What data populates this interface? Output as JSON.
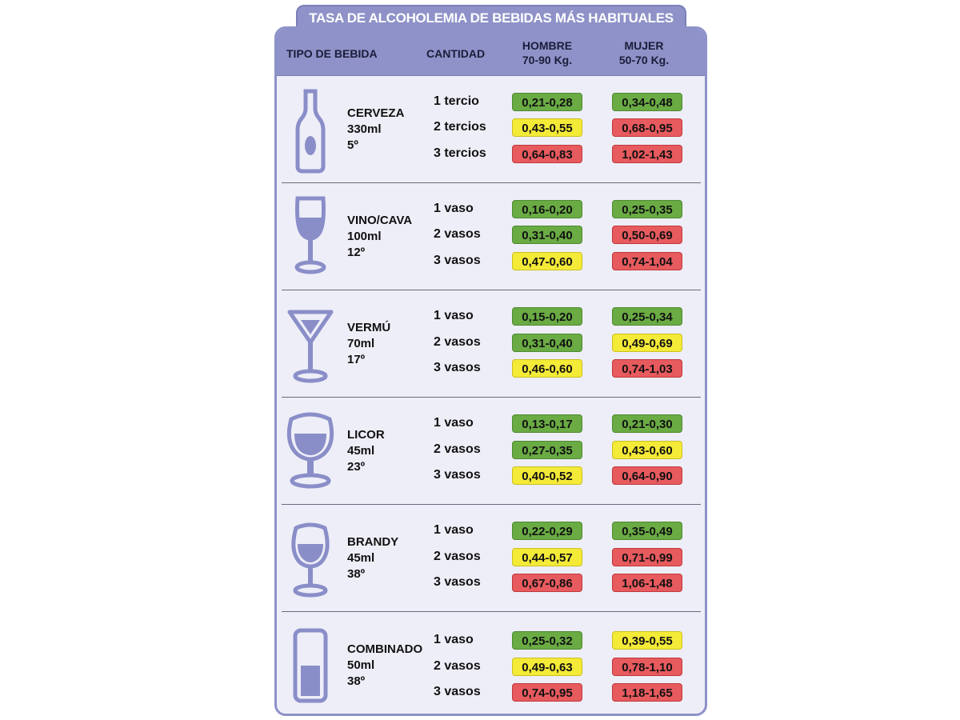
{
  "title": "TASA DE ALCOHOLEMIA DE BEBIDAS MÁS HABITUALES",
  "header": {
    "col_tipo": "TIPO DE BEBIDA",
    "col_cantidad": "CANTIDAD",
    "col_hombre": "HOMBRE",
    "col_hombre_sub": "70-90 Kg.",
    "col_mujer": "MUJER",
    "col_mujer_sub": "50-70 Kg."
  },
  "colors": {
    "green": "#6aab44",
    "yellow": "#f4ea38",
    "red": "#e75a5e",
    "accent": "#8e92c8"
  },
  "drinks": [
    {
      "name": "CERVEZA",
      "volume": "330ml",
      "degree": "5º",
      "icon": "beer-bottle-icon",
      "rows": [
        {
          "qty": "1 tercio",
          "hombre": "0,21-0,28",
          "hombre_color": "green",
          "mujer": "0,34-0,48",
          "mujer_color": "green"
        },
        {
          "qty": "2 tercios",
          "hombre": "0,43-0,55",
          "hombre_color": "yellow",
          "mujer": "0,68-0,95",
          "mujer_color": "red"
        },
        {
          "qty": "3 tercios",
          "hombre": "0,64-0,83",
          "hombre_color": "red",
          "mujer": "1,02-1,43",
          "mujer_color": "red"
        }
      ]
    },
    {
      "name": "VINO/CAVA",
      "volume": "100ml",
      "degree": "12º",
      "icon": "wine-glass-icon",
      "rows": [
        {
          "qty": "1 vaso",
          "hombre": "0,16-0,20",
          "hombre_color": "green",
          "mujer": "0,25-0,35",
          "mujer_color": "green"
        },
        {
          "qty": "2 vasos",
          "hombre": "0,31-0,40",
          "hombre_color": "green",
          "mujer": "0,50-0,69",
          "mujer_color": "red"
        },
        {
          "qty": "3 vasos",
          "hombre": "0,47-0,60",
          "hombre_color": "yellow",
          "mujer": "0,74-1,04",
          "mujer_color": "red"
        }
      ]
    },
    {
      "name": "VERMÚ",
      "volume": "70ml",
      "degree": "17º",
      "icon": "martini-glass-icon",
      "rows": [
        {
          "qty": "1 vaso",
          "hombre": "0,15-0,20",
          "hombre_color": "green",
          "mujer": "0,25-0,34",
          "mujer_color": "green"
        },
        {
          "qty": "2 vasos",
          "hombre": "0,31-0,40",
          "hombre_color": "green",
          "mujer": "0,49-0,69",
          "mujer_color": "yellow"
        },
        {
          "qty": "3 vasos",
          "hombre": "0,46-0,60",
          "hombre_color": "yellow",
          "mujer": "0,74-1,03",
          "mujer_color": "red"
        }
      ]
    },
    {
      "name": "LICOR",
      "volume": "45ml",
      "degree": "23º",
      "icon": "liqueur-glass-icon",
      "rows": [
        {
          "qty": "1 vaso",
          "hombre": "0,13-0,17",
          "hombre_color": "green",
          "mujer": "0,21-0,30",
          "mujer_color": "green"
        },
        {
          "qty": "2 vasos",
          "hombre": "0,27-0,35",
          "hombre_color": "green",
          "mujer": "0,43-0,60",
          "mujer_color": "yellow"
        },
        {
          "qty": "3 vasos",
          "hombre": "0,40-0,52",
          "hombre_color": "yellow",
          "mujer": "0,64-0,90",
          "mujer_color": "red"
        }
      ]
    },
    {
      "name": "BRANDY",
      "volume": "45ml",
      "degree": "38º",
      "icon": "brandy-glass-icon",
      "rows": [
        {
          "qty": "1 vaso",
          "hombre": "0,22-0,29",
          "hombre_color": "green",
          "mujer": "0,35-0,49",
          "mujer_color": "green"
        },
        {
          "qty": "2 vasos",
          "hombre": "0,44-0,57",
          "hombre_color": "yellow",
          "mujer": "0,71-0,99",
          "mujer_color": "red"
        },
        {
          "qty": "3 vasos",
          "hombre": "0,67-0,86",
          "hombre_color": "red",
          "mujer": "1,06-1,48",
          "mujer_color": "red"
        }
      ]
    },
    {
      "name": "COMBINADO",
      "volume": "50ml",
      "degree": "38º",
      "icon": "highball-glass-icon",
      "rows": [
        {
          "qty": "1 vaso",
          "hombre": "0,25-0,32",
          "hombre_color": "green",
          "mujer": "0,39-0,55",
          "mujer_color": "yellow"
        },
        {
          "qty": "2 vasos",
          "hombre": "0,49-0,63",
          "hombre_color": "yellow",
          "mujer": "0,78-1,10",
          "mujer_color": "red"
        },
        {
          "qty": "3 vasos",
          "hombre": "0,74-0,95",
          "hombre_color": "red",
          "mujer": "1,18-1,65",
          "mujer_color": "red"
        }
      ]
    }
  ]
}
